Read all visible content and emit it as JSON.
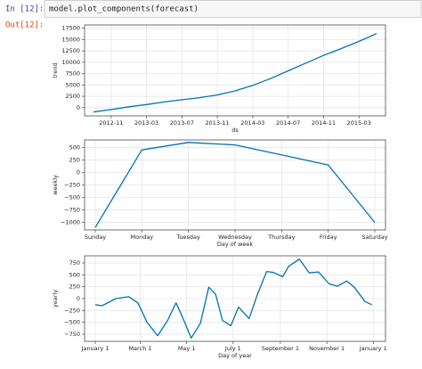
{
  "cell": {
    "input_prompt": "In [12]:",
    "code": "model.plot_components(forecast)",
    "output_prompt": "Out[12]:"
  },
  "chart_data": [
    {
      "type": "line",
      "ylabel": "trend",
      "xlabel": "ds",
      "color": "#0072B2",
      "grid": true,
      "x": [
        "2012-09",
        "2012-11",
        "2013-01",
        "2013-03",
        "2013-05",
        "2013-07",
        "2013-09",
        "2013-11",
        "2014-01",
        "2014-03",
        "2014-05",
        "2014-07",
        "2014-09",
        "2014-11",
        "2015-01",
        "2015-03",
        "2015-05"
      ],
      "values": [
        -950,
        -400,
        200,
        700,
        1250,
        1750,
        2200,
        2800,
        3700,
        4900,
        6400,
        8100,
        9800,
        11500,
        13000,
        14600,
        16300
      ],
      "xlim": [
        "2012-08",
        "2015-06"
      ],
      "xticks": [
        "2012-11",
        "2013-03",
        "2013-07",
        "2013-11",
        "2014-03",
        "2014-07",
        "2014-11",
        "2015-03"
      ],
      "ylim": [
        -1800,
        18200
      ],
      "yticks": [
        0,
        2500,
        5000,
        7500,
        10000,
        12500,
        15000,
        17500
      ]
    },
    {
      "type": "line",
      "ylabel": "weekly",
      "xlabel": "Day of week",
      "color": "#0072B2",
      "grid": true,
      "categories": [
        "Sunday",
        "Monday",
        "Tuesday",
        "Wednesday",
        "Thursday",
        "Friday",
        "Saturday"
      ],
      "values": [
        -1100,
        450,
        600,
        550,
        350,
        150,
        -1000
      ],
      "ylim": [
        -1150,
        650
      ],
      "yticks": [
        {
          "value": -1000,
          "label": "−1000"
        },
        {
          "value": -750,
          "label": "−750"
        },
        {
          "value": -500,
          "label": "−500"
        },
        {
          "value": -250,
          "label": "−250"
        },
        0,
        250,
        500
      ]
    },
    {
      "type": "line",
      "ylabel": "yearly",
      "xlabel": "Day of year",
      "color": "#0072B2",
      "grid": true,
      "x": [
        0,
        9,
        27,
        44,
        56,
        68,
        82,
        95,
        106,
        114,
        126,
        138,
        149,
        158,
        167,
        178,
        188,
        202,
        213,
        225,
        234,
        246,
        254,
        268,
        281,
        293,
        307,
        318,
        330,
        340,
        354,
        363
      ],
      "values": [
        -130,
        -150,
        0,
        40,
        -90,
        -500,
        -780,
        -460,
        -90,
        -370,
        -830,
        -520,
        240,
        90,
        -460,
        -570,
        -180,
        -420,
        90,
        570,
        550,
        460,
        680,
        830,
        540,
        560,
        310,
        260,
        370,
        240,
        -60,
        -130
      ],
      "xlim": [
        -14,
        381
      ],
      "xticks": [
        {
          "value": 0,
          "label": "January 1"
        },
        {
          "value": 59,
          "label": "March 1"
        },
        {
          "value": 120,
          "label": "May 1"
        },
        {
          "value": 181,
          "label": "July 1"
        },
        {
          "value": 243,
          "label": "September 1"
        },
        {
          "value": 304,
          "label": "November 1"
        },
        {
          "value": 365,
          "label": "January 1"
        }
      ],
      "ylim": [
        -900,
        900
      ],
      "yticks": [
        {
          "value": -750,
          "label": "−750"
        },
        {
          "value": -500,
          "label": "−500"
        },
        {
          "value": -250,
          "label": "−250"
        },
        0,
        250,
        500,
        750
      ]
    }
  ]
}
